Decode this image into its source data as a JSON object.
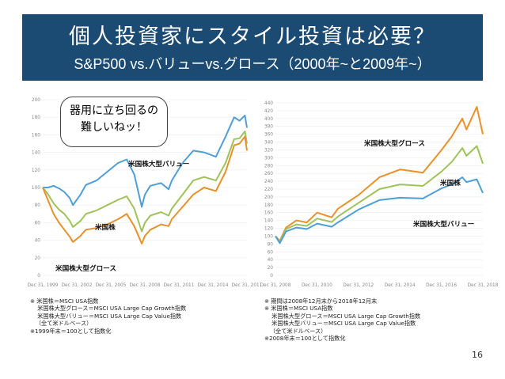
{
  "slide": {
    "title": "個人投資家にスタイル投資は必要？",
    "subtitle": "S&P500 vs.バリューvs.グロース（2000年~と2009年~）",
    "page_number": "16",
    "bubble_text": "器用に立ち回るの\n難しいねッ！"
  },
  "notes": {
    "left": "※ 米国株＝MSCI USA指数\n    米国株大型グロース＝MSCI USA Large Cap Growth指数\n    米国株大型バリュー＝MSCI USA Large Cap Value指数\n   （全て米ドルベース）\n※1999年末＝100として指数化",
    "right": "※ 期間は2008年12月末から2018年12月末\n※ 米国株＝MSCI USA指数\n    米国株大型グロース＝MSCI USA Large Cap Growth指数\n    米国株大型バリュー＝MSCI USA Large Cap Value指数\n   （全て米ドルベース）\n※2008年末＝100として指数化"
  },
  "colors": {
    "title_bg": "#1b4a73",
    "growth": "#e8912a",
    "usa": "#9fc25a",
    "value": "#4f9fd6"
  },
  "chart_data": [
    {
      "type": "line",
      "ylim": [
        0,
        200
      ],
      "yticks": [
        0,
        20,
        40,
        60,
        80,
        100,
        120,
        140,
        160,
        180,
        200
      ],
      "xticks": [
        "Dec 31, 1999",
        "Dec 31, 2002",
        "Dec 31, 2005",
        "Dec 31, 2008",
        "Dec 31, 2011",
        "Dec 31, 2014",
        "Dec 31, 2017"
      ],
      "x": [
        1999.99,
        2000.5,
        2001.0,
        2001.5,
        2002.0,
        2002.5,
        2002.8,
        2003.5,
        2004.0,
        2005.0,
        2006.0,
        2007.0,
        2007.8,
        2008.5,
        2009.2,
        2009.5,
        2010.0,
        2011.0,
        2011.7,
        2012.0,
        2013.0,
        2014.0,
        2015.0,
        2016.1,
        2017.0,
        2017.8,
        2018.3,
        2018.8,
        2018.99
      ],
      "series": [
        {
          "name": "米国株大型バリュー",
          "values": [
            100,
            100,
            102,
            99,
            95,
            88,
            80,
            92,
            103,
            108,
            118,
            128,
            132,
            115,
            78,
            92,
            102,
            105,
            98,
            108,
            128,
            142,
            140,
            135,
            158,
            180,
            176,
            182,
            168
          ]
        },
        {
          "name": "米国株",
          "values": [
            100,
            92,
            82,
            75,
            70,
            62,
            55,
            62,
            70,
            74,
            80,
            86,
            90,
            76,
            50,
            60,
            68,
            72,
            68,
            76,
            92,
            108,
            112,
            108,
            128,
            155,
            156,
            164,
            150
          ]
        },
        {
          "name": "米国株大型グロース",
          "values": [
            100,
            85,
            70,
            60,
            52,
            44,
            38,
            45,
            52,
            54,
            58,
            64,
            70,
            56,
            36,
            45,
            52,
            58,
            56,
            64,
            78,
            92,
            100,
            96,
            118,
            148,
            150,
            158,
            142
          ]
        }
      ]
    },
    {
      "type": "line",
      "ylim": [
        0,
        440
      ],
      "yticks": [
        0,
        20,
        40,
        60,
        80,
        100,
        120,
        140,
        160,
        180,
        200,
        220,
        240,
        260,
        280,
        300,
        320,
        340,
        360,
        380,
        400,
        420,
        440
      ],
      "xticks": [
        "Dec 31, 2008",
        "Dec 31, 2010",
        "Dec 31, 2012",
        "Dec 31, 2014",
        "Dec 31, 2016",
        "Dec 31, 2018"
      ],
      "x": [
        2008.99,
        2009.2,
        2009.5,
        2010.0,
        2010.5,
        2011.0,
        2011.7,
        2012.0,
        2013.0,
        2014.0,
        2015.0,
        2016.1,
        2017.0,
        2017.5,
        2018.0,
        2018.2,
        2018.7,
        2018.99
      ],
      "series": [
        {
          "name": "米国株大型グロース",
          "values": [
            100,
            88,
            122,
            140,
            135,
            160,
            148,
            170,
            205,
            250,
            270,
            262,
            320,
            355,
            400,
            372,
            430,
            360
          ]
        },
        {
          "name": "米国株",
          "values": [
            100,
            85,
            118,
            130,
            126,
            145,
            136,
            150,
            185,
            220,
            232,
            228,
            265,
            290,
            325,
            305,
            330,
            285
          ]
        },
        {
          "name": "米国株大型バリュー",
          "values": [
            100,
            82,
            112,
            122,
            118,
            132,
            124,
            135,
            168,
            192,
            198,
            196,
            222,
            232,
            250,
            238,
            245,
            210
          ]
        }
      ]
    }
  ]
}
